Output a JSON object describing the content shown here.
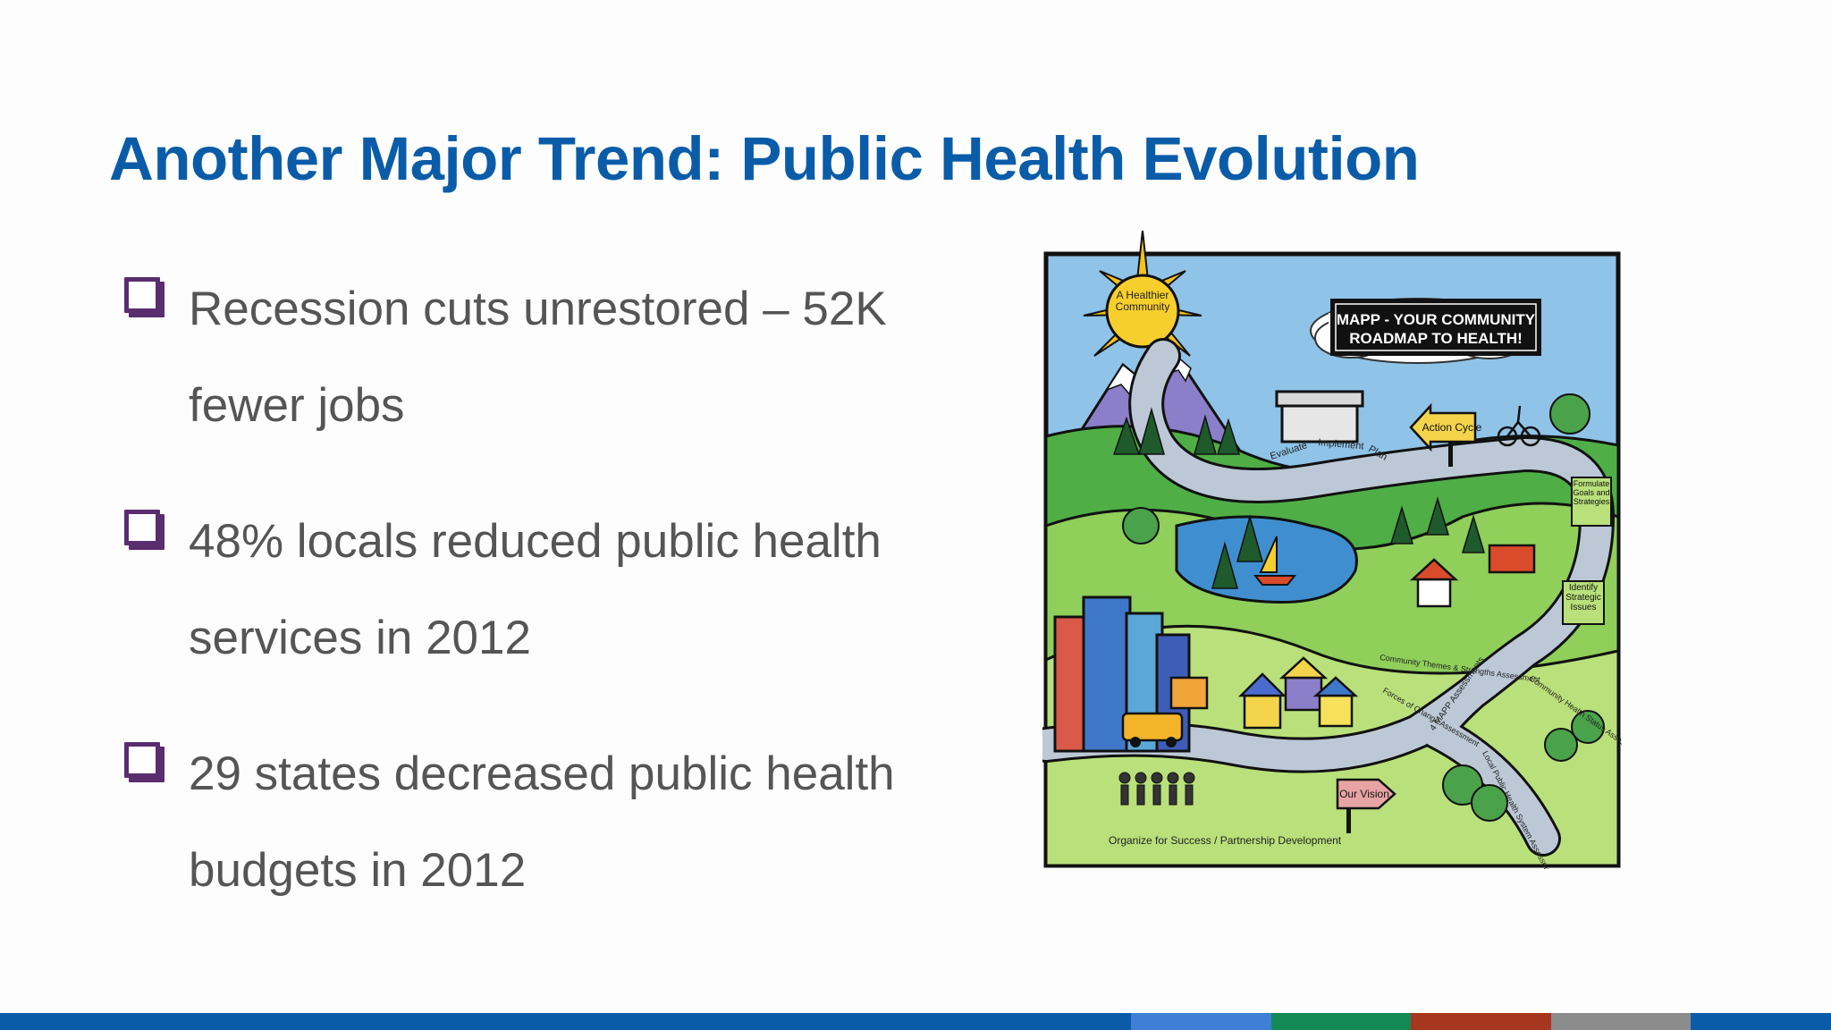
{
  "slide": {
    "title": "Another Major Trend: Public Health Evolution",
    "bullets": [
      {
        "text": "Recession cuts unrestored – 52K fewer jobs"
      },
      {
        "text": "48% locals reduced public health services in 2012"
      },
      {
        "text": "29 states decreased public health budgets in 2012"
      }
    ]
  },
  "map": {
    "sun_text": "A Healthier Community",
    "banner_line1": "MAPP - YOUR COMMUNITY",
    "banner_line2": "ROADMAP TO HEALTH!",
    "action_cycle": "Action Cycle",
    "evaluate": "Evaluate",
    "implement": "Implement",
    "plan": "Plan",
    "formulate": "Formulate Goals and Strategies",
    "identify": "Identify Strategic Issues",
    "community_themes": "Community Themes & Strengths Assessment",
    "forces_of_change": "Forces of Change Assessment",
    "four_mapp": "4 MAPP Assessments",
    "community_health": "Community Health Status Assessment",
    "local_system": "Local Public Health System Assessment",
    "our_vision": "Our Vision",
    "organize": "Organize for Success / Partnership Development"
  },
  "colors": {
    "title": "#0b5ca8",
    "bullet_box": "#5a2d6e",
    "body_text": "#555555",
    "footer": [
      "#0b5ca8",
      "#3f7fd6",
      "#138a56",
      "#a6361e",
      "#8c8c8c",
      "#0b5ca8"
    ]
  }
}
